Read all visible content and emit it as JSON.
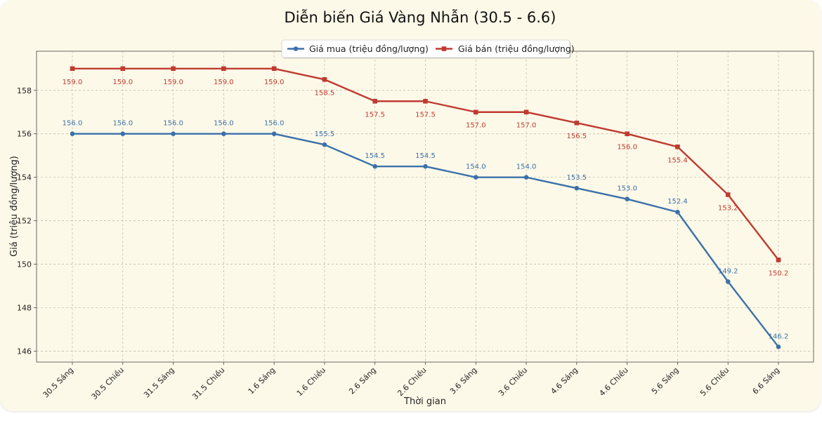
{
  "chart_data": {
    "type": "line",
    "title": "Diễn biến Giá Vàng Nhẫn (30.5 - 6.6)",
    "xlabel": "Thời gian",
    "ylabel": "Giá (triệu đồng/lượng)",
    "categories": [
      "30.5 Sáng",
      "30.5 Chiều",
      "31.5 Sáng",
      "31.5 Chiều",
      "1.6 Sáng",
      "1.6 Chiều",
      "2.6 Sáng",
      "2.6 Chiều",
      "3.6 Sáng",
      "3.6 Chiều",
      "4.6 Sáng",
      "4.6 Chiều",
      "5.6 Sáng",
      "5.6 Chiều",
      "6.6 Sáng"
    ],
    "ylim": [
      145.5,
      159.8
    ],
    "yticks": [
      146,
      148,
      150,
      152,
      154,
      156,
      158
    ],
    "grid": true,
    "legend_position": "top-center",
    "series": [
      {
        "name": "Giá mua (triệu đồng/lượng)",
        "color": "#3b70aa",
        "marker": "circle",
        "values": [
          156.0,
          156.0,
          156.0,
          156.0,
          156.0,
          155.5,
          154.5,
          154.5,
          154.0,
          154.0,
          153.5,
          153.0,
          152.4,
          149.2,
          146.2
        ],
        "labels": [
          "156.0",
          "156.0",
          "156.0",
          "156.0",
          "156.0",
          "155.5",
          "154.5",
          "154.5",
          "154.0",
          "154.0",
          "153.5",
          "153.0",
          "152.4",
          "149.2",
          "146.2"
        ],
        "label_position": "above"
      },
      {
        "name": "Giá bán (triệu đồng/lượng)",
        "color": "#bf3a30",
        "marker": "square",
        "values": [
          159.0,
          159.0,
          159.0,
          159.0,
          159.0,
          158.5,
          157.5,
          157.5,
          157.0,
          157.0,
          156.5,
          156.0,
          155.4,
          153.2,
          150.2
        ],
        "labels": [
          "159.0",
          "159.0",
          "159.0",
          "159.0",
          "159.0",
          "158.5",
          "157.5",
          "157.5",
          "157.0",
          "157.0",
          "156.5",
          "156.0",
          "155.4",
          "153.2",
          "150.2"
        ],
        "label_position": "below"
      }
    ]
  }
}
